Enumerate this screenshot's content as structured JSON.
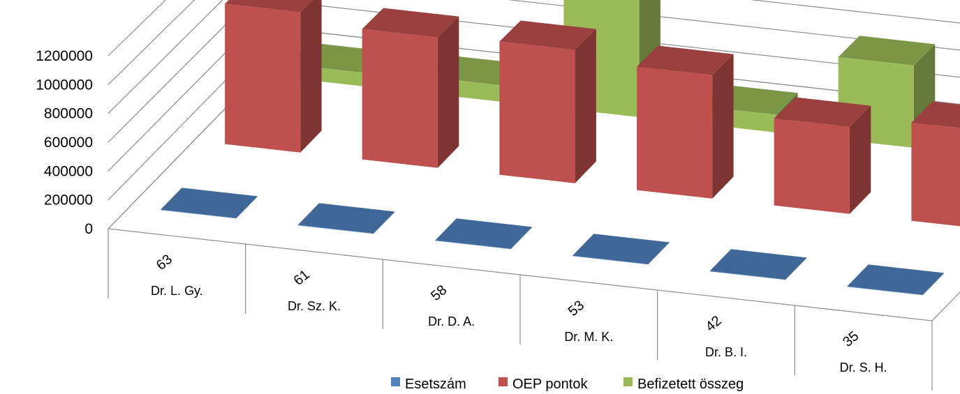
{
  "chart_data": {
    "type": "bar",
    "subtype": "3d-clustered-column",
    "title": "",
    "xlabel": "",
    "ylabel": "",
    "ylim": [
      0,
      1200000
    ],
    "y_ticks": [
      "0",
      "200000",
      "400000",
      "600000",
      "800000",
      "1000000",
      "1200000"
    ],
    "grid": true,
    "legend_position": "bottom-right",
    "categories": [
      "Dr. L. Gy.",
      "Dr. Sz. K.",
      "Dr. D. A.",
      "Dr. M. K.",
      "Dr. B. I.",
      "Dr. S. H."
    ],
    "category_groups": [
      "63",
      "61",
      "58",
      "53",
      "42",
      "35"
    ],
    "series": [
      {
        "name": "Esetszám",
        "color": "#4f81bd",
        "values": [
          63,
          61,
          58,
          53,
          42,
          35
        ]
      },
      {
        "name": "OEP pontok",
        "color": "#c0504d",
        "values": [
          1000000,
          930000,
          950000,
          880000,
          620000,
          700000
        ]
      },
      {
        "name": "Befizetett összeg",
        "color": "#9bbb59",
        "values": [
          100000,
          120000,
          900000,
          130000,
          600000,
          100000
        ]
      }
    ]
  }
}
